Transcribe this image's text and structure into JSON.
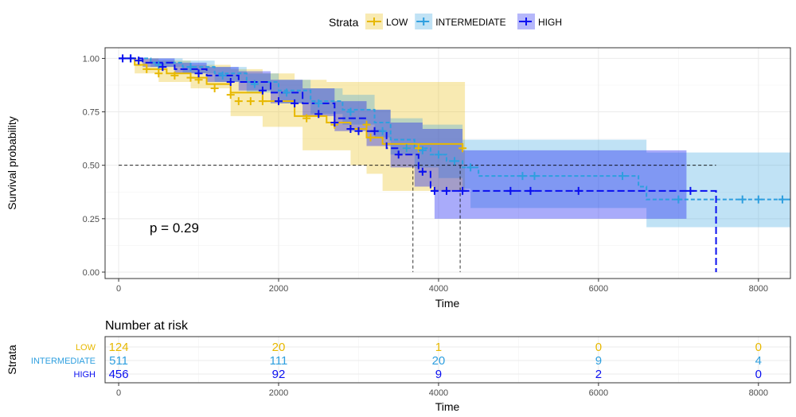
{
  "chart_data": {
    "type": "survival",
    "legend": {
      "title": "Strata",
      "placement": "top",
      "entries": [
        {
          "key": "low",
          "label": "LOW",
          "color": "#E7B800"
        },
        {
          "key": "intermediate",
          "label": "INTERMEDIATE",
          "color": "#2E9FDF"
        },
        {
          "key": "high",
          "label": "HIGH",
          "color": "#0A0FF0"
        }
      ]
    },
    "xlabel": "Time",
    "ylabel": "Survival probability",
    "xlim": [
      -170,
      8400
    ],
    "ylim": [
      -0.03,
      1.05
    ],
    "x_ticks": [
      "0",
      "2000",
      "4000",
      "6000",
      "8000"
    ],
    "y_ticks": [
      "0.00",
      "0.25",
      "0.50",
      "0.75",
      "1.00"
    ],
    "grid": true,
    "p_value": "p = 0.29",
    "median_line_y": 0.5,
    "medians": [
      {
        "series": "intermediate",
        "x": 4270
      },
      {
        "series": "high",
        "x": 3680
      },
      {
        "series": "high",
        "x": 7470
      }
    ],
    "series": [
      {
        "name": "LOW",
        "key": "low",
        "color": "#E7B800",
        "linestyle": "solid",
        "steps": [
          [
            0,
            1.0
          ],
          [
            200,
            0.97
          ],
          [
            350,
            0.95
          ],
          [
            600,
            0.93
          ],
          [
            900,
            0.91
          ],
          [
            1100,
            0.88
          ],
          [
            1400,
            0.84
          ],
          [
            1800,
            0.8
          ],
          [
            2200,
            0.73
          ],
          [
            2600,
            0.7
          ],
          [
            2900,
            0.67
          ],
          [
            3100,
            0.63
          ],
          [
            3300,
            0.6
          ],
          [
            4300,
            0.58
          ]
        ],
        "ci_upper": [
          [
            0,
            1.0
          ],
          [
            200,
            1.0
          ],
          [
            500,
            0.99
          ],
          [
            900,
            0.97
          ],
          [
            1400,
            0.95
          ],
          [
            1800,
            0.93
          ],
          [
            2200,
            0.9
          ],
          [
            2600,
            0.89
          ],
          [
            4330,
            0.89
          ]
        ],
        "ci_lower": [
          [
            0,
            1.0
          ],
          [
            200,
            0.93
          ],
          [
            500,
            0.89
          ],
          [
            900,
            0.86
          ],
          [
            1400,
            0.73
          ],
          [
            1800,
            0.68
          ],
          [
            2300,
            0.57
          ],
          [
            2900,
            0.5
          ],
          [
            3100,
            0.46
          ],
          [
            3300,
            0.38
          ],
          [
            4330,
            0.38
          ]
        ],
        "censors": [
          [
            350,
            0.95
          ],
          [
            500,
            0.93
          ],
          [
            700,
            0.92
          ],
          [
            900,
            0.91
          ],
          [
            1000,
            0.9
          ],
          [
            1200,
            0.86
          ],
          [
            1400,
            0.83
          ],
          [
            1500,
            0.8
          ],
          [
            1650,
            0.8
          ],
          [
            1800,
            0.8
          ],
          [
            2350,
            0.72
          ],
          [
            2700,
            0.69
          ],
          [
            3100,
            0.69
          ],
          [
            3150,
            0.63
          ],
          [
            3600,
            0.58
          ],
          [
            3750,
            0.58
          ],
          [
            4300,
            0.58
          ]
        ]
      },
      {
        "name": "INTERMEDIATE",
        "key": "intermediate",
        "color": "#2E9FDF",
        "linestyle": "dashed",
        "steps": [
          [
            0,
            1.0
          ],
          [
            400,
            0.98
          ],
          [
            800,
            0.96
          ],
          [
            1200,
            0.93
          ],
          [
            1600,
            0.89
          ],
          [
            2000,
            0.85
          ],
          [
            2400,
            0.8
          ],
          [
            2800,
            0.76
          ],
          [
            3200,
            0.7
          ],
          [
            3400,
            0.62
          ],
          [
            3700,
            0.58
          ],
          [
            3900,
            0.55
          ],
          [
            4100,
            0.52
          ],
          [
            4300,
            0.49
          ],
          [
            4500,
            0.45
          ],
          [
            6500,
            0.4
          ],
          [
            6600,
            0.34
          ],
          [
            8400,
            0.34
          ]
        ],
        "ci_upper": [
          [
            0,
            1.0
          ],
          [
            400,
            1.0
          ],
          [
            800,
            0.99
          ],
          [
            1200,
            0.96
          ],
          [
            1600,
            0.93
          ],
          [
            2000,
            0.9
          ],
          [
            2400,
            0.86
          ],
          [
            2800,
            0.83
          ],
          [
            3200,
            0.76
          ],
          [
            3400,
            0.72
          ],
          [
            3800,
            0.69
          ],
          [
            4300,
            0.62
          ],
          [
            4400,
            0.62
          ],
          [
            6400,
            0.62
          ],
          [
            6600,
            0.56
          ],
          [
            8400,
            0.56
          ]
        ],
        "ci_lower": [
          [
            0,
            1.0
          ],
          [
            400,
            0.96
          ],
          [
            800,
            0.93
          ],
          [
            1200,
            0.89
          ],
          [
            1600,
            0.84
          ],
          [
            2000,
            0.79
          ],
          [
            2400,
            0.74
          ],
          [
            2800,
            0.69
          ],
          [
            3200,
            0.63
          ],
          [
            3400,
            0.55
          ],
          [
            3700,
            0.49
          ],
          [
            4000,
            0.44
          ],
          [
            4300,
            0.39
          ],
          [
            4400,
            0.3
          ],
          [
            6600,
            0.21
          ],
          [
            8400,
            0.21
          ]
        ],
        "censors": [
          [
            150,
            1.0
          ],
          [
            500,
            0.97
          ],
          [
            900,
            0.96
          ],
          [
            1300,
            0.92
          ],
          [
            1700,
            0.88
          ],
          [
            2100,
            0.84
          ],
          [
            2500,
            0.79
          ],
          [
            2900,
            0.75
          ],
          [
            3300,
            0.66
          ],
          [
            3600,
            0.58
          ],
          [
            3800,
            0.57
          ],
          [
            4000,
            0.55
          ],
          [
            4200,
            0.52
          ],
          [
            4400,
            0.49
          ],
          [
            5050,
            0.45
          ],
          [
            5200,
            0.45
          ],
          [
            6300,
            0.45
          ],
          [
            7000,
            0.34
          ],
          [
            7800,
            0.34
          ],
          [
            8000,
            0.34
          ],
          [
            8300,
            0.34
          ]
        ]
      },
      {
        "name": "HIGH",
        "key": "high",
        "color": "#0A0FF0",
        "linestyle": "longdash",
        "steps": [
          [
            0,
            1.0
          ],
          [
            300,
            0.98
          ],
          [
            700,
            0.95
          ],
          [
            1100,
            0.92
          ],
          [
            1500,
            0.89
          ],
          [
            1900,
            0.84
          ],
          [
            2300,
            0.79
          ],
          [
            2700,
            0.72
          ],
          [
            3100,
            0.66
          ],
          [
            3350,
            0.58
          ],
          [
            3500,
            0.55
          ],
          [
            3750,
            0.47
          ],
          [
            3900,
            0.38
          ],
          [
            7470,
            0.38
          ],
          [
            7470,
            0.0
          ]
        ],
        "ci_upper": [
          [
            0,
            1.0
          ],
          [
            300,
            1.0
          ],
          [
            700,
            0.98
          ],
          [
            1100,
            0.96
          ],
          [
            1500,
            0.94
          ],
          [
            1900,
            0.9
          ],
          [
            2300,
            0.86
          ],
          [
            2700,
            0.8
          ],
          [
            3100,
            0.76
          ],
          [
            3400,
            0.7
          ],
          [
            3800,
            0.67
          ],
          [
            4300,
            0.57
          ],
          [
            7100,
            0.57
          ]
        ],
        "ci_lower": [
          [
            0,
            1.0
          ],
          [
            300,
            0.96
          ],
          [
            700,
            0.93
          ],
          [
            1100,
            0.89
          ],
          [
            1500,
            0.85
          ],
          [
            1900,
            0.79
          ],
          [
            2300,
            0.73
          ],
          [
            2700,
            0.66
          ],
          [
            3100,
            0.59
          ],
          [
            3400,
            0.49
          ],
          [
            3700,
            0.4
          ],
          [
            3950,
            0.25
          ],
          [
            7100,
            0.25
          ]
        ],
        "censors": [
          [
            50,
            1.0
          ],
          [
            150,
            1.0
          ],
          [
            250,
            0.99
          ],
          [
            550,
            0.96
          ],
          [
            1000,
            0.93
          ],
          [
            1400,
            0.89
          ],
          [
            1800,
            0.85
          ],
          [
            2000,
            0.8
          ],
          [
            2200,
            0.79
          ],
          [
            2500,
            0.74
          ],
          [
            2700,
            0.7
          ],
          [
            2900,
            0.67
          ],
          [
            3000,
            0.66
          ],
          [
            3200,
            0.66
          ],
          [
            3500,
            0.55
          ],
          [
            3800,
            0.47
          ],
          [
            3950,
            0.38
          ],
          [
            4100,
            0.38
          ],
          [
            4300,
            0.38
          ],
          [
            4900,
            0.38
          ],
          [
            5150,
            0.38
          ],
          [
            5750,
            0.38
          ],
          [
            7150,
            0.38
          ]
        ]
      }
    ],
    "risk_table": {
      "title": "Number at risk",
      "ylabel": "Strata",
      "xlabel": "Time",
      "time_points": [
        0,
        2000,
        4000,
        6000,
        8000
      ],
      "rows": [
        {
          "label": "LOW",
          "color": "#E7B800",
          "values": [
            "124",
            "20",
            "1",
            "0",
            "0"
          ]
        },
        {
          "label": "INTERMEDIATE",
          "color": "#2E9FDF",
          "values": [
            "511",
            "111",
            "20",
            "9",
            "4"
          ]
        },
        {
          "label": "HIGH",
          "color": "#0A0FF0",
          "values": [
            "456",
            "92",
            "9",
            "2",
            "0"
          ]
        }
      ]
    }
  }
}
